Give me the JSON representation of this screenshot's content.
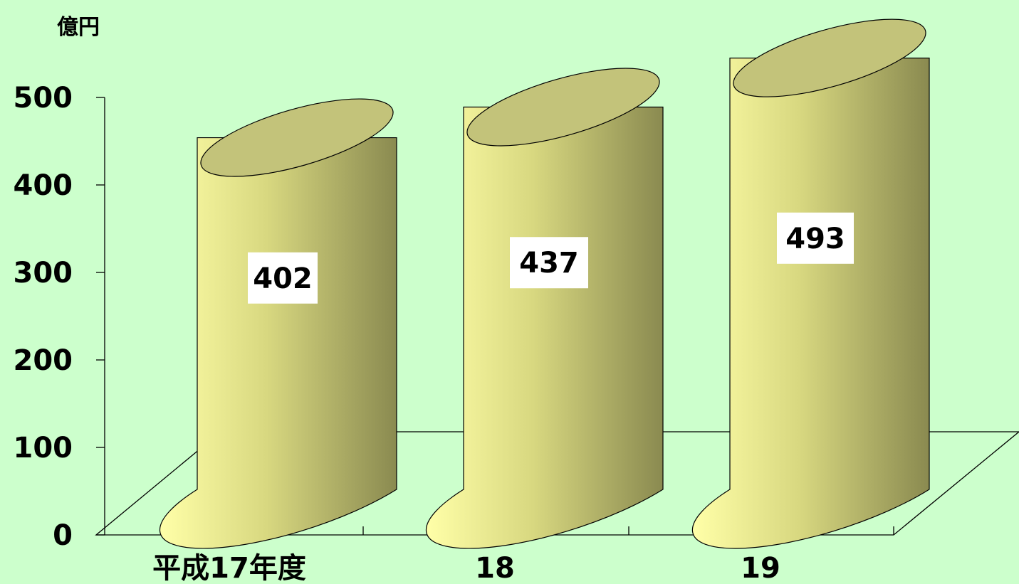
{
  "chart_data": {
    "type": "bar",
    "style": "3d-cylinder",
    "unit": "億円",
    "categories": [
      "平成17年度",
      "18",
      "19"
    ],
    "values": [
      402,
      437,
      493
    ],
    "data_labels": [
      "402",
      "437",
      "493"
    ],
    "ylim": [
      0,
      500
    ],
    "y_ticks": [
      0,
      100,
      200,
      300,
      400,
      500
    ],
    "grid": false,
    "legend": "none"
  },
  "colors": {
    "background": "#CCFFCC",
    "cylinder_light": "#FFFFA8",
    "cylinder_mid": "#D8D880",
    "cylinder_dark": "#8A8A50",
    "cylinder_top": "#C3C37A",
    "data_label_box": "#FFFFFF"
  }
}
